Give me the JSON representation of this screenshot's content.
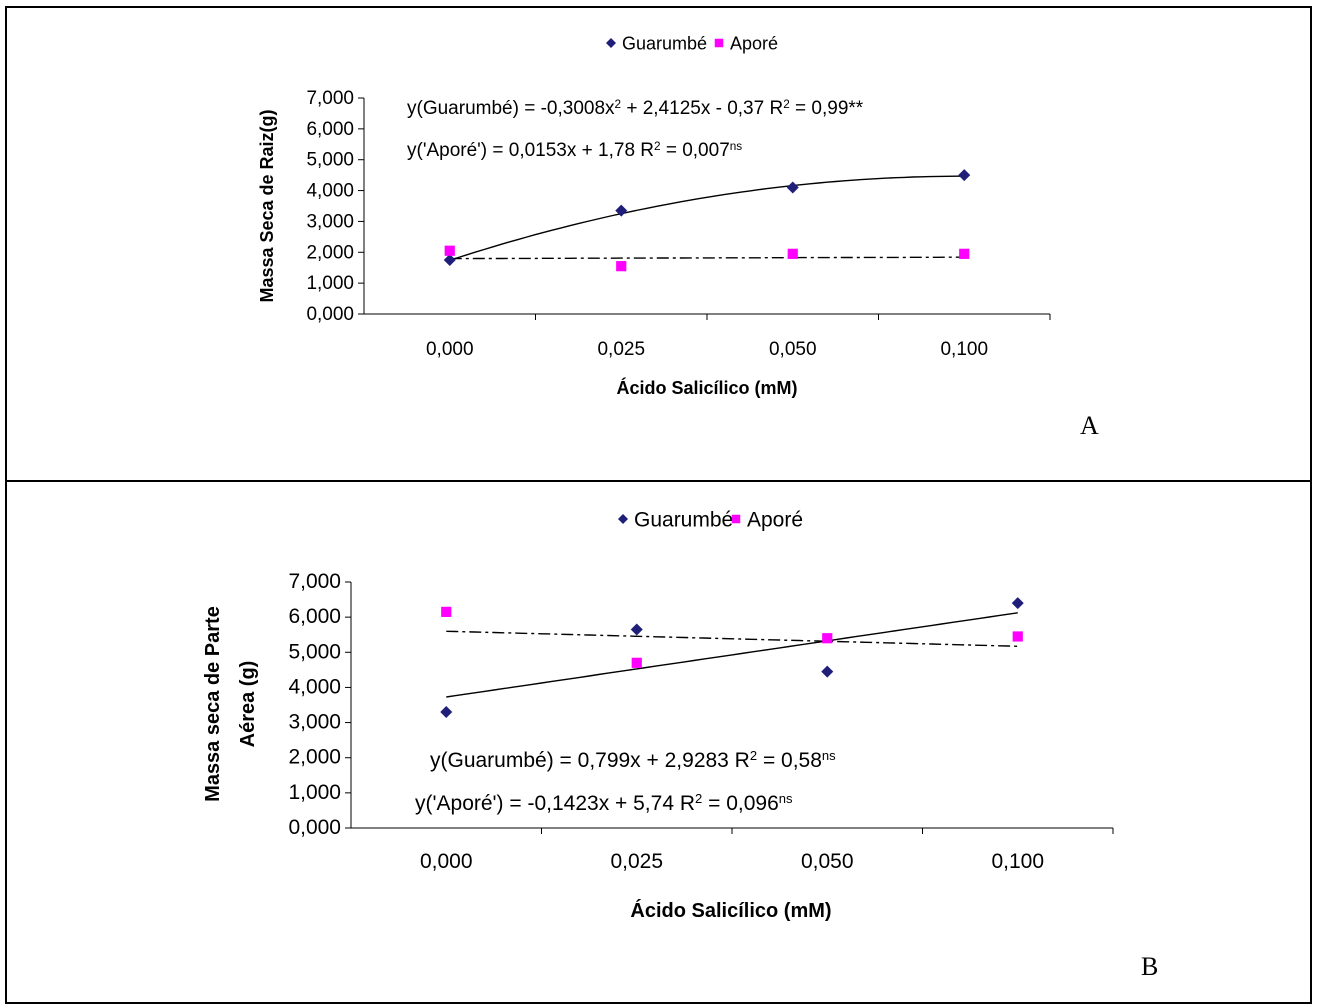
{
  "chart_data": [
    {
      "type": "scatter",
      "panel_label": "A",
      "xlabel": "Ácido Salicílico (mM)",
      "ylabel": "Massa Seca de Raiz(g)",
      "categories": [
        "0,000",
        "0,025",
        "0,050",
        "0,100"
      ],
      "yticks": [
        "0,000",
        "1,000",
        "2,000",
        "3,000",
        "4,000",
        "5,000",
        "6,000",
        "7,000"
      ],
      "ylim": [
        0,
        7
      ],
      "legend": [
        "Guarumbé",
        "Aporé"
      ],
      "series": [
        {
          "name": "Guarumbé",
          "color": "#1f1f7a",
          "marker": "diamond",
          "values": [
            1.75,
            3.35,
            4.1,
            4.5
          ]
        },
        {
          "name": "Aporé",
          "color": "#ff00ff",
          "marker": "square",
          "values": [
            2.05,
            1.55,
            1.95,
            1.95
          ]
        }
      ],
      "trendlines": [
        {
          "series": "Guarumbé",
          "kind": "poly2",
          "coef": [
            -0.3008,
            2.4125,
            -0.37
          ],
          "style": "solid"
        },
        {
          "series": "Aporé",
          "kind": "linear",
          "coef": [
            0.0153,
            1.78
          ],
          "style": "dashdot"
        }
      ],
      "equations": [
        {
          "main": "y(Guarumbé) = -0,3008x",
          "sup1": "2",
          "mid": " + 2,4125x - 0,37 R",
          "sup2": "2",
          "tail": " = 0,99**",
          "sup3": ""
        },
        {
          "main": "y('Aporé') = 0,0153x + 1,78 R",
          "sup1": "2",
          "mid": " = 0,007",
          "sup2": "ns",
          "tail": "",
          "sup3": ""
        }
      ]
    },
    {
      "type": "scatter",
      "panel_label": "B",
      "xlabel": "Ácido Salicílico (mM)",
      "ylabel": [
        "Massa seca de Parte",
        "Aérea (g)"
      ],
      "categories": [
        "0,000",
        "0,025",
        "0,050",
        "0,100"
      ],
      "yticks": [
        "0,000",
        "1,000",
        "2,000",
        "3,000",
        "4,000",
        "5,000",
        "6,000",
        "7,000"
      ],
      "ylim": [
        0,
        7
      ],
      "legend": [
        "Guarumbé",
        "Aporé"
      ],
      "series": [
        {
          "name": "Guarumbé",
          "color": "#1f1f7a",
          "marker": "diamond",
          "values": [
            3.3,
            5.65,
            4.45,
            6.4
          ]
        },
        {
          "name": "Aporé",
          "color": "#ff00ff",
          "marker": "square",
          "values": [
            6.15,
            4.7,
            5.4,
            5.45
          ]
        }
      ],
      "trendlines": [
        {
          "series": "Guarumbé",
          "kind": "linear",
          "coef": [
            0.799,
            2.9283
          ],
          "style": "solid"
        },
        {
          "series": "Aporé",
          "kind": "linear",
          "coef": [
            -0.1423,
            5.74
          ],
          "style": "dashdot"
        }
      ],
      "equations": [
        {
          "main": "y(Guarumbé) = 0,799x + 2,9283 R",
          "sup1": "2",
          "mid": " = 0,58",
          "sup2": "ns",
          "tail": "",
          "sup3": ""
        },
        {
          "main": "y('Aporé') = -0,1423x + 5,74  R",
          "sup1": "2",
          "mid": " = 0,096",
          "sup2": "ns",
          "tail": "",
          "sup3": ""
        }
      ]
    }
  ]
}
